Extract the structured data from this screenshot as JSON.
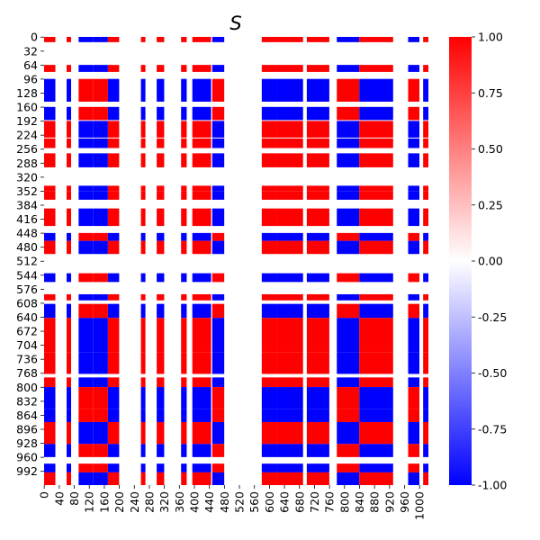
{
  "chart_data": {
    "type": "heatmap",
    "title": "S",
    "xlabel": "",
    "ylabel": "",
    "n": 1024,
    "x_ticks": [
      "0",
      "40",
      "80",
      "120",
      "160",
      "200",
      "240",
      "280",
      "320",
      "360",
      "400",
      "440",
      "480",
      "520",
      "560",
      "600",
      "640",
      "680",
      "720",
      "760",
      "800",
      "840",
      "880",
      "920",
      "960",
      "1000"
    ],
    "y_ticks": [
      "0",
      "32",
      "64",
      "96",
      "128",
      "160",
      "192",
      "224",
      "256",
      "288",
      "320",
      "352",
      "384",
      "416",
      "448",
      "480",
      "512",
      "544",
      "576",
      "608",
      "640",
      "672",
      "704",
      "736",
      "768",
      "800",
      "832",
      "864",
      "896",
      "928",
      "960",
      "992"
    ],
    "colorbar": {
      "vmin": -1.0,
      "vmax": 1.0,
      "ticks": [
        "-1.00",
        "-0.75",
        "-0.50",
        "-0.25",
        "0.00",
        "0.25",
        "0.50",
        "0.75",
        "1.00"
      ],
      "colors": [
        "#0000ff",
        "#ffffff",
        "#ff0000"
      ]
    },
    "row_bands": [
      {
        "y": [
          0,
          12
        ],
        "value": 1
      },
      {
        "y": [
          64,
          80
        ],
        "value": 1
      },
      {
        "y": [
          96,
          148
        ],
        "value": -1
      },
      {
        "y": [
          160,
          190
        ],
        "value": -1
      },
      {
        "y": [
          192,
          230
        ],
        "value": 1
      },
      {
        "y": [
          232,
          254
        ],
        "value": 1
      },
      {
        "y": [
          266,
          298
        ],
        "value": 1
      },
      {
        "y": [
          340,
          352
        ],
        "value": 1
      },
      {
        "y": [
          352,
          372
        ],
        "value": 1
      },
      {
        "y": [
          392,
          432
        ],
        "value": 1
      },
      {
        "y": [
          448,
          466
        ],
        "value": -1
      },
      {
        "y": [
          466,
          496
        ],
        "value": 1
      },
      {
        "y": [
          540,
          560
        ],
        "value": -1
      },
      {
        "y": [
          588,
          602
        ],
        "value": 1
      },
      {
        "y": [
          610,
          642
        ],
        "value": -1
      },
      {
        "y": [
          642,
          720
        ],
        "value": 1
      },
      {
        "y": [
          720,
          770
        ],
        "value": 1
      },
      {
        "y": [
          778,
          800
        ],
        "value": 1
      },
      {
        "y": [
          800,
          850
        ],
        "value": -1
      },
      {
        "y": [
          850,
          880
        ],
        "value": -1
      },
      {
        "y": [
          880,
          930
        ],
        "value": 1
      },
      {
        "y": [
          930,
          960
        ],
        "value": -1
      },
      {
        "y": [
          975,
          995
        ],
        "value": -1
      },
      {
        "y": [
          995,
          1024
        ],
        "value": 1
      }
    ],
    "col_bands": [
      {
        "x": [
          0,
          30
        ],
        "value": 1
      },
      {
        "x": [
          60,
          72
        ],
        "value": 1
      },
      {
        "x": [
          92,
          130
        ],
        "value": -1
      },
      {
        "x": [
          130,
          170
        ],
        "value": -1
      },
      {
        "x": [
          170,
          200
        ],
        "value": 1
      },
      {
        "x": [
          258,
          270
        ],
        "value": 1
      },
      {
        "x": [
          300,
          320
        ],
        "value": 1
      },
      {
        "x": [
          365,
          380
        ],
        "value": 1
      },
      {
        "x": [
          395,
          445
        ],
        "value": 1
      },
      {
        "x": [
          448,
          480
        ],
        "value": -1
      },
      {
        "x": [
          580,
          620
        ],
        "value": 1
      },
      {
        "x": [
          620,
          690
        ],
        "value": 1
      },
      {
        "x": [
          700,
          760
        ],
        "value": 1
      },
      {
        "x": [
          780,
          840
        ],
        "value": -1
      },
      {
        "x": [
          840,
          930
        ],
        "value": 1
      },
      {
        "x": [
          970,
          1000
        ],
        "value": -1
      },
      {
        "x": [
          1010,
          1024
        ],
        "value": 1
      }
    ],
    "blank_rows": [
      [
        500,
        540
      ]
    ],
    "blank_cols": [
      [
        500,
        560
      ]
    ]
  }
}
